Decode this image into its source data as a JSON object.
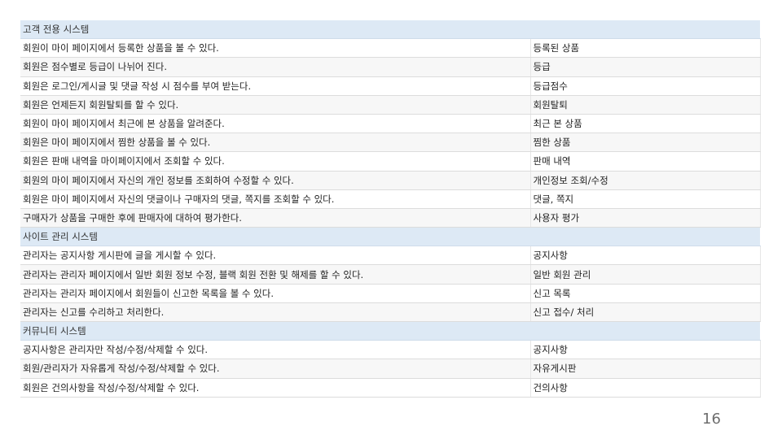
{
  "sections": [
    {
      "title": "고객 전용 시스템",
      "rows": [
        {
          "description": "회원이 마이 페이지에서 등록한 상품을 볼 수 있다.",
          "feature": "등록된 상품"
        },
        {
          "description": "회원은 점수별로 등급이 나뉘어 진다.",
          "feature": "등급"
        },
        {
          "description": "회원은 로그인/게시글 및 댓글 작성 시 점수를 부여 받는다.",
          "feature": "등급점수"
        },
        {
          "description": "회원은 언제든지 회원탈퇴를 할 수 있다.",
          "feature": "회원탈퇴"
        },
        {
          "description": "회원이 마이 페이지에서 최근에 본 상품을 알려준다.",
          "feature": "최근 본 상품"
        },
        {
          "description": "회원은 마이 페이지에서 찜한 상품을 볼 수 있다.",
          "feature": "찜한 상품"
        },
        {
          "description": "회원은 판매 내역을 마이페이지에서 조회할 수 있다.",
          "feature": "판매 내역"
        },
        {
          "description": "회원의 마이 페이지에서 자신의 개인 정보를 조회하여 수정할 수 있다.",
          "feature": "개인정보 조회/수정"
        },
        {
          "description": "회원은 마이 페이지에서 자신의 댓글이나 구매자의 댓글, 쪽지를 조회할 수 있다.",
          "feature": "댓글, 쪽지"
        },
        {
          "description": "구매자가 상품을 구매한 후에 판매자에 대하여 평가한다.",
          "feature": "사용자 평가"
        }
      ]
    },
    {
      "title": "사이트 관리 시스템",
      "rows": [
        {
          "description": "관리자는 공지사항 게시판에 글을 게시할 수 있다.",
          "feature": "공지사항"
        },
        {
          "description": "관리자는 관리자 페이지에서 일반 회원 정보 수정, 블랙 회원 전환 및 해제를 할 수 있다.",
          "feature": "일반 회원 관리"
        },
        {
          "description": "관리자는 관리자 페이지에서 회원들이 신고한 목록을 볼 수 있다.",
          "feature": "신고 목록"
        },
        {
          "description": "관리자는 신고를 수리하고 처리한다.",
          "feature": "신고 접수/ 처리"
        }
      ]
    },
    {
      "title": "커뮤니티 시스템",
      "rows": [
        {
          "description": "공지사항은 관리자만 작성/수정/삭제할 수 있다.",
          "feature": "공지사항"
        },
        {
          "description": "회원/관리자가 자유롭게 작성/수정/삭제할 수 있다.",
          "feature": "자유게시판"
        },
        {
          "description": "회원은 건의사항을 작성/수정/삭제할 수 있다.",
          "feature": "건의사항"
        }
      ]
    }
  ],
  "page_number": "16"
}
